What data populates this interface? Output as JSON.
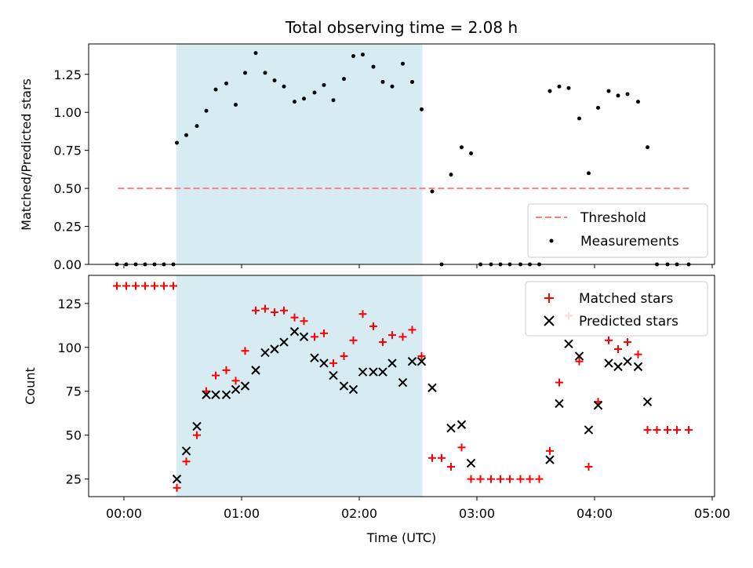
{
  "chart_data": [
    {
      "type": "scatter",
      "title": "Total observing time = 2.08 h",
      "xlabel": "",
      "ylabel": "Matched/Predicted stars",
      "ylim": [
        0,
        1.45
      ],
      "yticks": [
        0.0,
        0.25,
        0.5,
        0.75,
        1.0,
        1.25
      ],
      "ytick_labels": [
        "0.00",
        "0.25",
        "0.50",
        "0.75",
        "1.00",
        "1.25"
      ],
      "shaded_interval_hours": [
        0.445,
        2.535
      ],
      "shade_color": "#add8e6",
      "threshold": {
        "value": 0.5,
        "x_range_hours": [
          -0.05,
          4.8
        ],
        "color": "#ff7f7f"
      },
      "legend": {
        "position": "lower-right",
        "entries": [
          "Threshold",
          "Measurements"
        ]
      },
      "series": [
        {
          "name": "Measurements",
          "color": "#000000",
          "marker": "dot",
          "x_hours": [
            -0.06,
            0.02,
            0.1,
            0.18,
            0.26,
            0.34,
            0.42,
            0.45,
            0.53,
            0.62,
            0.7,
            0.78,
            0.87,
            0.95,
            1.03,
            1.12,
            1.2,
            1.28,
            1.36,
            1.45,
            1.53,
            1.62,
            1.7,
            1.78,
            1.87,
            1.95,
            2.03,
            2.12,
            2.2,
            2.28,
            2.37,
            2.45,
            2.53,
            2.62,
            2.7,
            2.78,
            2.87,
            2.95,
            3.03,
            3.12,
            3.2,
            3.28,
            3.37,
            3.45,
            3.53,
            3.62,
            3.7,
            3.78,
            3.87,
            3.95,
            4.03,
            4.12,
            4.2,
            4.28,
            4.37,
            4.45,
            4.53,
            4.62,
            4.7,
            4.8
          ],
          "y": [
            0,
            0,
            0,
            0,
            0,
            0,
            0,
            0.8,
            0.85,
            0.91,
            1.01,
            1.15,
            1.19,
            1.05,
            1.26,
            1.39,
            1.26,
            1.21,
            1.17,
            1.07,
            1.09,
            1.13,
            1.18,
            1.08,
            1.22,
            1.37,
            1.38,
            1.3,
            1.2,
            1.17,
            1.32,
            1.2,
            1.02,
            0.48,
            0,
            0.59,
            0.77,
            0.73,
            0,
            0,
            0,
            0,
            0,
            0,
            0,
            1.14,
            1.17,
            1.16,
            0.96,
            0.6,
            1.03,
            1.14,
            1.11,
            1.12,
            1.07,
            0.77,
            0,
            0,
            0,
            0
          ]
        }
      ]
    },
    {
      "type": "scatter",
      "title": "",
      "xlabel": "Time (UTC)",
      "ylabel": "Count",
      "xlim_hours": [
        -0.3,
        5.02
      ],
      "ylim": [
        15,
        141
      ],
      "xticks_hours": [
        0,
        1,
        2,
        3,
        4,
        5
      ],
      "xtick_labels": [
        "00:00",
        "01:00",
        "02:00",
        "03:00",
        "04:00",
        "05:00"
      ],
      "yticks": [
        25,
        50,
        75,
        100,
        125
      ],
      "ytick_labels": [
        "25",
        "50",
        "75",
        "100",
        "125"
      ],
      "shaded_interval_hours": [
        0.445,
        2.535
      ],
      "shade_color": "#add8e6",
      "legend": {
        "position": "top-right",
        "entries": [
          "Matched stars",
          "Predicted stars"
        ]
      },
      "series": [
        {
          "name": "Matched stars",
          "color": "#ff0000",
          "marker": "plus",
          "x_hours": [
            -0.06,
            0.02,
            0.1,
            0.18,
            0.26,
            0.34,
            0.42,
            0.45,
            0.53,
            0.62,
            0.7,
            0.78,
            0.87,
            0.95,
            1.03,
            1.12,
            1.2,
            1.28,
            1.36,
            1.45,
            1.53,
            1.62,
            1.7,
            1.78,
            1.87,
            1.95,
            2.03,
            2.12,
            2.2,
            2.28,
            2.37,
            2.45,
            2.53,
            2.62,
            2.7,
            2.78,
            2.87,
            2.95,
            3.03,
            3.12,
            3.2,
            3.28,
            3.37,
            3.45,
            3.53,
            3.62,
            3.7,
            3.78,
            3.87,
            3.95,
            4.03,
            4.12,
            4.2,
            4.28,
            4.37,
            4.45,
            4.53,
            4.62,
            4.7,
            4.8
          ],
          "y": [
            135,
            135,
            135,
            135,
            135,
            135,
            135,
            20,
            35,
            50,
            75,
            84,
            87,
            81,
            98,
            121,
            122,
            120,
            121,
            117,
            115,
            106,
            108,
            91,
            95,
            104,
            119,
            112,
            103,
            107,
            106,
            110,
            95,
            37,
            37,
            32,
            43,
            25,
            25,
            25,
            25,
            25,
            25,
            25,
            25,
            41,
            80,
            118,
            92,
            32,
            69,
            104,
            99,
            103,
            96,
            53,
            53,
            53,
            53,
            53
          ]
        },
        {
          "name": "Predicted stars",
          "color": "#000000",
          "marker": "x",
          "x_hours": [
            0.45,
            0.53,
            0.62,
            0.7,
            0.78,
            0.87,
            0.95,
            1.03,
            1.12,
            1.2,
            1.28,
            1.36,
            1.45,
            1.53,
            1.62,
            1.7,
            1.78,
            1.87,
            1.95,
            2.03,
            2.12,
            2.2,
            2.28,
            2.37,
            2.45,
            2.53,
            2.62,
            2.78,
            2.87,
            2.95,
            3.62,
            3.7,
            3.78,
            3.87,
            3.95,
            4.03,
            4.12,
            4.2,
            4.28,
            4.37,
            4.45
          ],
          "y": [
            25,
            41,
            55,
            73,
            73,
            73,
            76,
            78,
            87,
            97,
            99,
            103,
            109,
            106,
            94,
            91,
            84,
            78,
            76,
            86,
            86,
            86,
            91,
            80,
            92,
            92,
            77,
            54,
            56,
            34,
            36,
            68,
            102,
            95,
            53,
            67,
            91,
            89,
            92,
            89,
            69
          ]
        }
      ]
    }
  ]
}
